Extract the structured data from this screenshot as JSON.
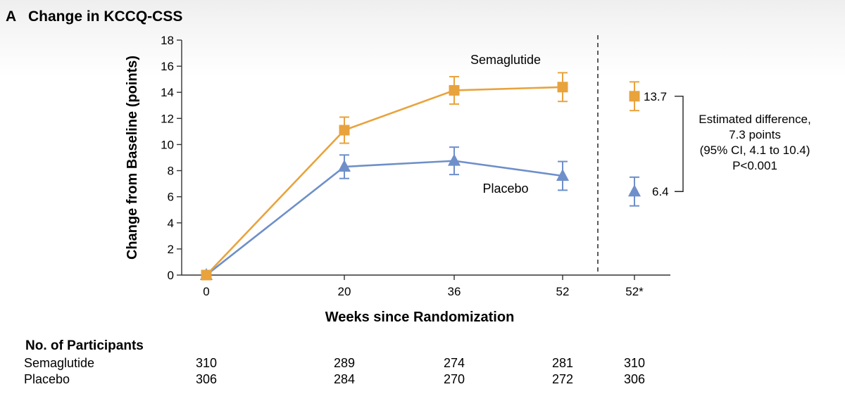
{
  "panel": {
    "letter": "A",
    "title": "Change in KCCQ-CSS"
  },
  "chart_data": {
    "type": "line",
    "title": "Change in KCCQ-CSS",
    "xlabel": "Weeks since Randomization",
    "ylabel": "Change from Baseline (points)",
    "ylim": [
      0,
      18
    ],
    "yticks": [
      0,
      2,
      4,
      6,
      8,
      10,
      12,
      14,
      16,
      18
    ],
    "categories": [
      "0",
      "20",
      "36",
      "52"
    ],
    "extra_category": "52*",
    "grid": false,
    "colors": {
      "Semaglutide": "#e8a33d",
      "Placebo": "#6e8fc9"
    },
    "series": [
      {
        "name": "Semaglutide",
        "marker": "square",
        "values": [
          0,
          11.1,
          14.15,
          14.4
        ],
        "err_low": [
          0,
          10.1,
          13.1,
          13.3
        ],
        "err_high": [
          0,
          12.1,
          15.2,
          15.5
        ],
        "endpoint": {
          "value": 13.7,
          "err_low": 12.6,
          "err_high": 14.8,
          "label": "13.7"
        }
      },
      {
        "name": "Placebo",
        "marker": "triangle",
        "values": [
          0,
          8.3,
          8.75,
          7.6
        ],
        "err_low": [
          0,
          7.4,
          7.7,
          6.5
        ],
        "err_high": [
          0,
          9.2,
          9.8,
          8.7
        ],
        "endpoint": {
          "value": 6.4,
          "err_low": 5.3,
          "err_high": 7.5,
          "label": "6.4"
        }
      }
    ],
    "annotation": {
      "lines": [
        "Estimated difference,",
        "7.3 points",
        "(95% CI, 4.1 to 10.4)",
        "P<0.001"
      ]
    }
  },
  "participants": {
    "heading": "No. of Participants",
    "rows": [
      {
        "label": "Semaglutide",
        "values": [
          "310",
          "289",
          "274",
          "281",
          "310"
        ]
      },
      {
        "label": "Placebo",
        "values": [
          "306",
          "284",
          "270",
          "272",
          "306"
        ]
      }
    ]
  }
}
